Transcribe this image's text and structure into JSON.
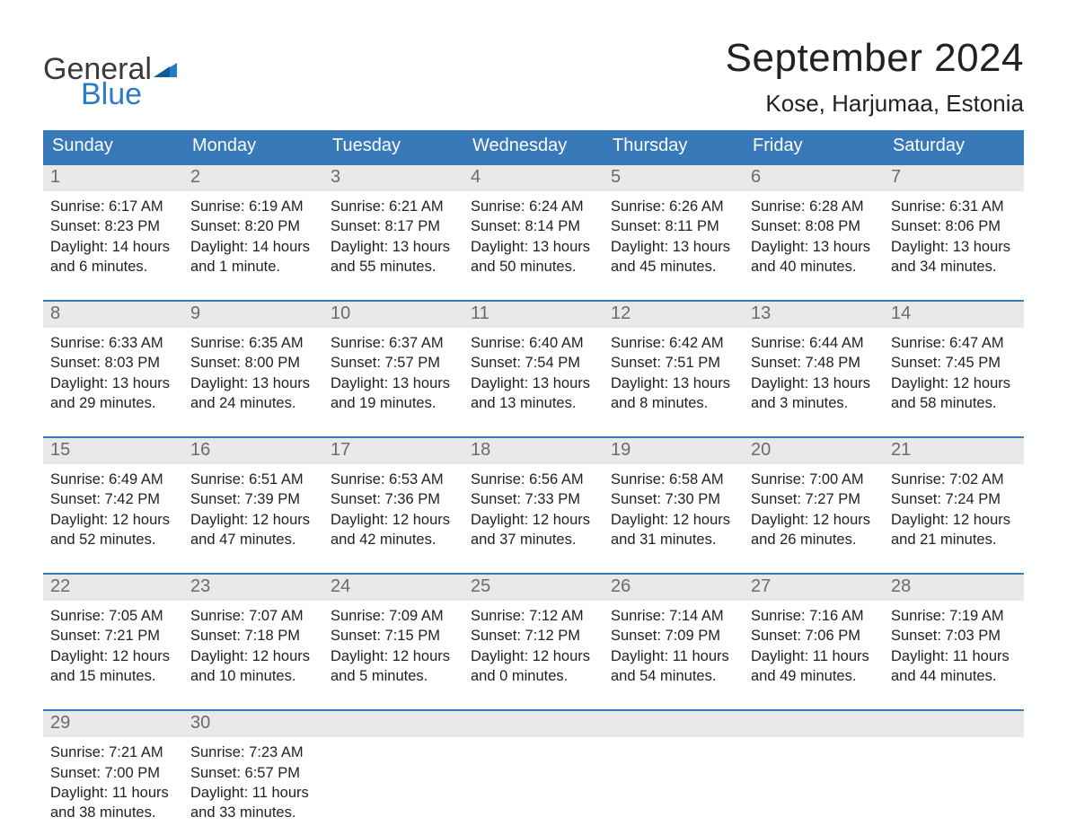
{
  "logo": {
    "text1": "General",
    "text2": "Blue",
    "accent_color": "#1f7ec7",
    "dark_color": "#3a3a3a"
  },
  "title": "September 2024",
  "location": "Kose, Harjumaa, Estonia",
  "colors": {
    "header_bg": "#3779b9",
    "header_text": "#ffffff",
    "daynum_bg": "#e9e9e9",
    "daynum_text": "#6a6a6a",
    "body_text": "#222222",
    "week_border": "#3779b9",
    "page_bg": "#ffffff"
  },
  "day_headers": [
    "Sunday",
    "Monday",
    "Tuesday",
    "Wednesday",
    "Thursday",
    "Friday",
    "Saturday"
  ],
  "weeks": [
    [
      {
        "n": "1",
        "sunrise": "Sunrise: 6:17 AM",
        "sunset": "Sunset: 8:23 PM",
        "daylight": "Daylight: 14 hours and 6 minutes."
      },
      {
        "n": "2",
        "sunrise": "Sunrise: 6:19 AM",
        "sunset": "Sunset: 8:20 PM",
        "daylight": "Daylight: 14 hours and 1 minute."
      },
      {
        "n": "3",
        "sunrise": "Sunrise: 6:21 AM",
        "sunset": "Sunset: 8:17 PM",
        "daylight": "Daylight: 13 hours and 55 minutes."
      },
      {
        "n": "4",
        "sunrise": "Sunrise: 6:24 AM",
        "sunset": "Sunset: 8:14 PM",
        "daylight": "Daylight: 13 hours and 50 minutes."
      },
      {
        "n": "5",
        "sunrise": "Sunrise: 6:26 AM",
        "sunset": "Sunset: 8:11 PM",
        "daylight": "Daylight: 13 hours and 45 minutes."
      },
      {
        "n": "6",
        "sunrise": "Sunrise: 6:28 AM",
        "sunset": "Sunset: 8:08 PM",
        "daylight": "Daylight: 13 hours and 40 minutes."
      },
      {
        "n": "7",
        "sunrise": "Sunrise: 6:31 AM",
        "sunset": "Sunset: 8:06 PM",
        "daylight": "Daylight: 13 hours and 34 minutes."
      }
    ],
    [
      {
        "n": "8",
        "sunrise": "Sunrise: 6:33 AM",
        "sunset": "Sunset: 8:03 PM",
        "daylight": "Daylight: 13 hours and 29 minutes."
      },
      {
        "n": "9",
        "sunrise": "Sunrise: 6:35 AM",
        "sunset": "Sunset: 8:00 PM",
        "daylight": "Daylight: 13 hours and 24 minutes."
      },
      {
        "n": "10",
        "sunrise": "Sunrise: 6:37 AM",
        "sunset": "Sunset: 7:57 PM",
        "daylight": "Daylight: 13 hours and 19 minutes."
      },
      {
        "n": "11",
        "sunrise": "Sunrise: 6:40 AM",
        "sunset": "Sunset: 7:54 PM",
        "daylight": "Daylight: 13 hours and 13 minutes."
      },
      {
        "n": "12",
        "sunrise": "Sunrise: 6:42 AM",
        "sunset": "Sunset: 7:51 PM",
        "daylight": "Daylight: 13 hours and 8 minutes."
      },
      {
        "n": "13",
        "sunrise": "Sunrise: 6:44 AM",
        "sunset": "Sunset: 7:48 PM",
        "daylight": "Daylight: 13 hours and 3 minutes."
      },
      {
        "n": "14",
        "sunrise": "Sunrise: 6:47 AM",
        "sunset": "Sunset: 7:45 PM",
        "daylight": "Daylight: 12 hours and 58 minutes."
      }
    ],
    [
      {
        "n": "15",
        "sunrise": "Sunrise: 6:49 AM",
        "sunset": "Sunset: 7:42 PM",
        "daylight": "Daylight: 12 hours and 52 minutes."
      },
      {
        "n": "16",
        "sunrise": "Sunrise: 6:51 AM",
        "sunset": "Sunset: 7:39 PM",
        "daylight": "Daylight: 12 hours and 47 minutes."
      },
      {
        "n": "17",
        "sunrise": "Sunrise: 6:53 AM",
        "sunset": "Sunset: 7:36 PM",
        "daylight": "Daylight: 12 hours and 42 minutes."
      },
      {
        "n": "18",
        "sunrise": "Sunrise: 6:56 AM",
        "sunset": "Sunset: 7:33 PM",
        "daylight": "Daylight: 12 hours and 37 minutes."
      },
      {
        "n": "19",
        "sunrise": "Sunrise: 6:58 AM",
        "sunset": "Sunset: 7:30 PM",
        "daylight": "Daylight: 12 hours and 31 minutes."
      },
      {
        "n": "20",
        "sunrise": "Sunrise: 7:00 AM",
        "sunset": "Sunset: 7:27 PM",
        "daylight": "Daylight: 12 hours and 26 minutes."
      },
      {
        "n": "21",
        "sunrise": "Sunrise: 7:02 AM",
        "sunset": "Sunset: 7:24 PM",
        "daylight": "Daylight: 12 hours and 21 minutes."
      }
    ],
    [
      {
        "n": "22",
        "sunrise": "Sunrise: 7:05 AM",
        "sunset": "Sunset: 7:21 PM",
        "daylight": "Daylight: 12 hours and 15 minutes."
      },
      {
        "n": "23",
        "sunrise": "Sunrise: 7:07 AM",
        "sunset": "Sunset: 7:18 PM",
        "daylight": "Daylight: 12 hours and 10 minutes."
      },
      {
        "n": "24",
        "sunrise": "Sunrise: 7:09 AM",
        "sunset": "Sunset: 7:15 PM",
        "daylight": "Daylight: 12 hours and 5 minutes."
      },
      {
        "n": "25",
        "sunrise": "Sunrise: 7:12 AM",
        "sunset": "Sunset: 7:12 PM",
        "daylight": "Daylight: 12 hours and 0 minutes."
      },
      {
        "n": "26",
        "sunrise": "Sunrise: 7:14 AM",
        "sunset": "Sunset: 7:09 PM",
        "daylight": "Daylight: 11 hours and 54 minutes."
      },
      {
        "n": "27",
        "sunrise": "Sunrise: 7:16 AM",
        "sunset": "Sunset: 7:06 PM",
        "daylight": "Daylight: 11 hours and 49 minutes."
      },
      {
        "n": "28",
        "sunrise": "Sunrise: 7:19 AM",
        "sunset": "Sunset: 7:03 PM",
        "daylight": "Daylight: 11 hours and 44 minutes."
      }
    ],
    [
      {
        "n": "29",
        "sunrise": "Sunrise: 7:21 AM",
        "sunset": "Sunset: 7:00 PM",
        "daylight": "Daylight: 11 hours and 38 minutes."
      },
      {
        "n": "30",
        "sunrise": "Sunrise: 7:23 AM",
        "sunset": "Sunset: 6:57 PM",
        "daylight": "Daylight: 11 hours and 33 minutes."
      },
      {
        "empty": true
      },
      {
        "empty": true
      },
      {
        "empty": true
      },
      {
        "empty": true
      },
      {
        "empty": true
      }
    ]
  ]
}
